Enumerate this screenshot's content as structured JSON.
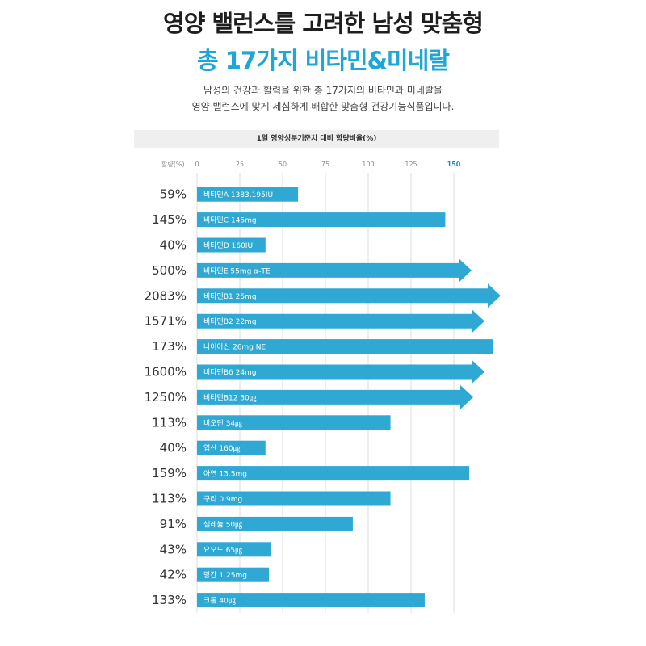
{
  "header": {
    "title_line1": "영양 밸런스를 고려한 남성 맞춤형",
    "title_line2": "총 17가지 비타민&미네랄",
    "desc_line1": "남성의 건강과 활력을 위한 총 17가지의 비타민과 미네랄을",
    "desc_line2": "영양 밸런스에 맞게 세심하게 배합한 맞춤형 건강기능식품입니다."
  },
  "colors": {
    "bar": "#2fa9d3",
    "highlight_tick": "#1e8cc8"
  },
  "chart_data": {
    "type": "bar",
    "orientation": "horizontal",
    "title": "1일 영양성분기준치 대비 함량비율(%)",
    "ylabel": "함량(%)",
    "xlim": [
      0,
      150
    ],
    "ticks": [
      0,
      25,
      50,
      75,
      100,
      125,
      150
    ],
    "highlight_tick": 150,
    "items": [
      {
        "pct": "59%",
        "value": 59,
        "label": "비타민A  1383.195IU",
        "overflow": false
      },
      {
        "pct": "145%",
        "value": 145,
        "label": "비타민C  145mg",
        "overflow": false
      },
      {
        "pct": "40%",
        "value": 40,
        "label": "비타민D  160IU",
        "overflow": false
      },
      {
        "pct": "500%",
        "value": 500,
        "label": "비타민E  55mg α-TE",
        "overflow": true
      },
      {
        "pct": "2083%",
        "value": 2083,
        "label": "비타민B1  25mg",
        "overflow": true
      },
      {
        "pct": "1571%",
        "value": 1571,
        "label": "비타민B2  22mg",
        "overflow": true
      },
      {
        "pct": "173%",
        "value": 173,
        "label": "나이아신  26mg NE",
        "overflow": false
      },
      {
        "pct": "1600%",
        "value": 1600,
        "label": "비타민B6  24mg",
        "overflow": true
      },
      {
        "pct": "1250%",
        "value": 1250,
        "label": "비타민B12  30㎍",
        "overflow": true
      },
      {
        "pct": "113%",
        "value": 113,
        "label": "비오틴  34㎍",
        "overflow": false
      },
      {
        "pct": "40%",
        "value": 40,
        "label": "엽산  160㎍",
        "overflow": false
      },
      {
        "pct": "159%",
        "value": 159,
        "label": "아연  13.5mg",
        "overflow": false
      },
      {
        "pct": "113%",
        "value": 113,
        "label": "구리  0.9mg",
        "overflow": false
      },
      {
        "pct": "91%",
        "value": 91,
        "label": "셀레늄  50㎍",
        "overflow": false
      },
      {
        "pct": "43%",
        "value": 43,
        "label": "요오드  65㎍",
        "overflow": false
      },
      {
        "pct": "42%",
        "value": 42,
        "label": "망간  1.25mg",
        "overflow": false
      },
      {
        "pct": "133%",
        "value": 133,
        "label": "크롬  40㎍",
        "overflow": false
      }
    ]
  }
}
